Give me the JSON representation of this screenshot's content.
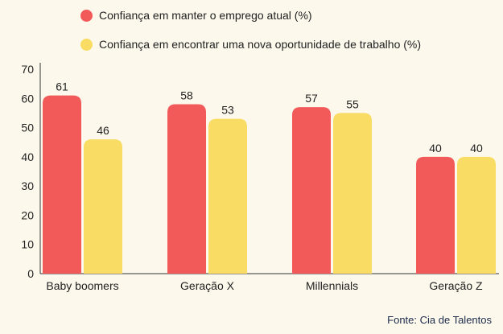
{
  "colors": {
    "series1": "#f25a5a",
    "series2": "#f8dc63",
    "axis": "#333333",
    "background": "#fdf8ec"
  },
  "legend": [
    {
      "label": "Confiança em manter o emprego atual (%)",
      "color": "#f25a5a"
    },
    {
      "label": "Confiança em encontrar uma nova oportunidade de trabalho (%)",
      "color": "#f8dc63"
    }
  ],
  "source": "Fonte: Cia de Talentos",
  "chart_data": {
    "type": "bar",
    "categories": [
      "Baby boomers",
      "Geração X",
      "Millennials",
      "Geração Z"
    ],
    "series": [
      {
        "name": "Confiança em manter o emprego atual (%)",
        "values": [
          61,
          58,
          57,
          40
        ],
        "color": "#f25a5a"
      },
      {
        "name": "Confiança em encontrar uma nova oportunidade de trabalho (%)",
        "values": [
          46,
          53,
          55,
          40
        ],
        "color": "#f8dc63"
      }
    ],
    "ylim": [
      0,
      70
    ],
    "yticks": [
      0,
      10,
      20,
      30,
      40,
      50,
      60,
      70
    ],
    "data_labels": true,
    "grid": false,
    "legend_position": "top"
  }
}
